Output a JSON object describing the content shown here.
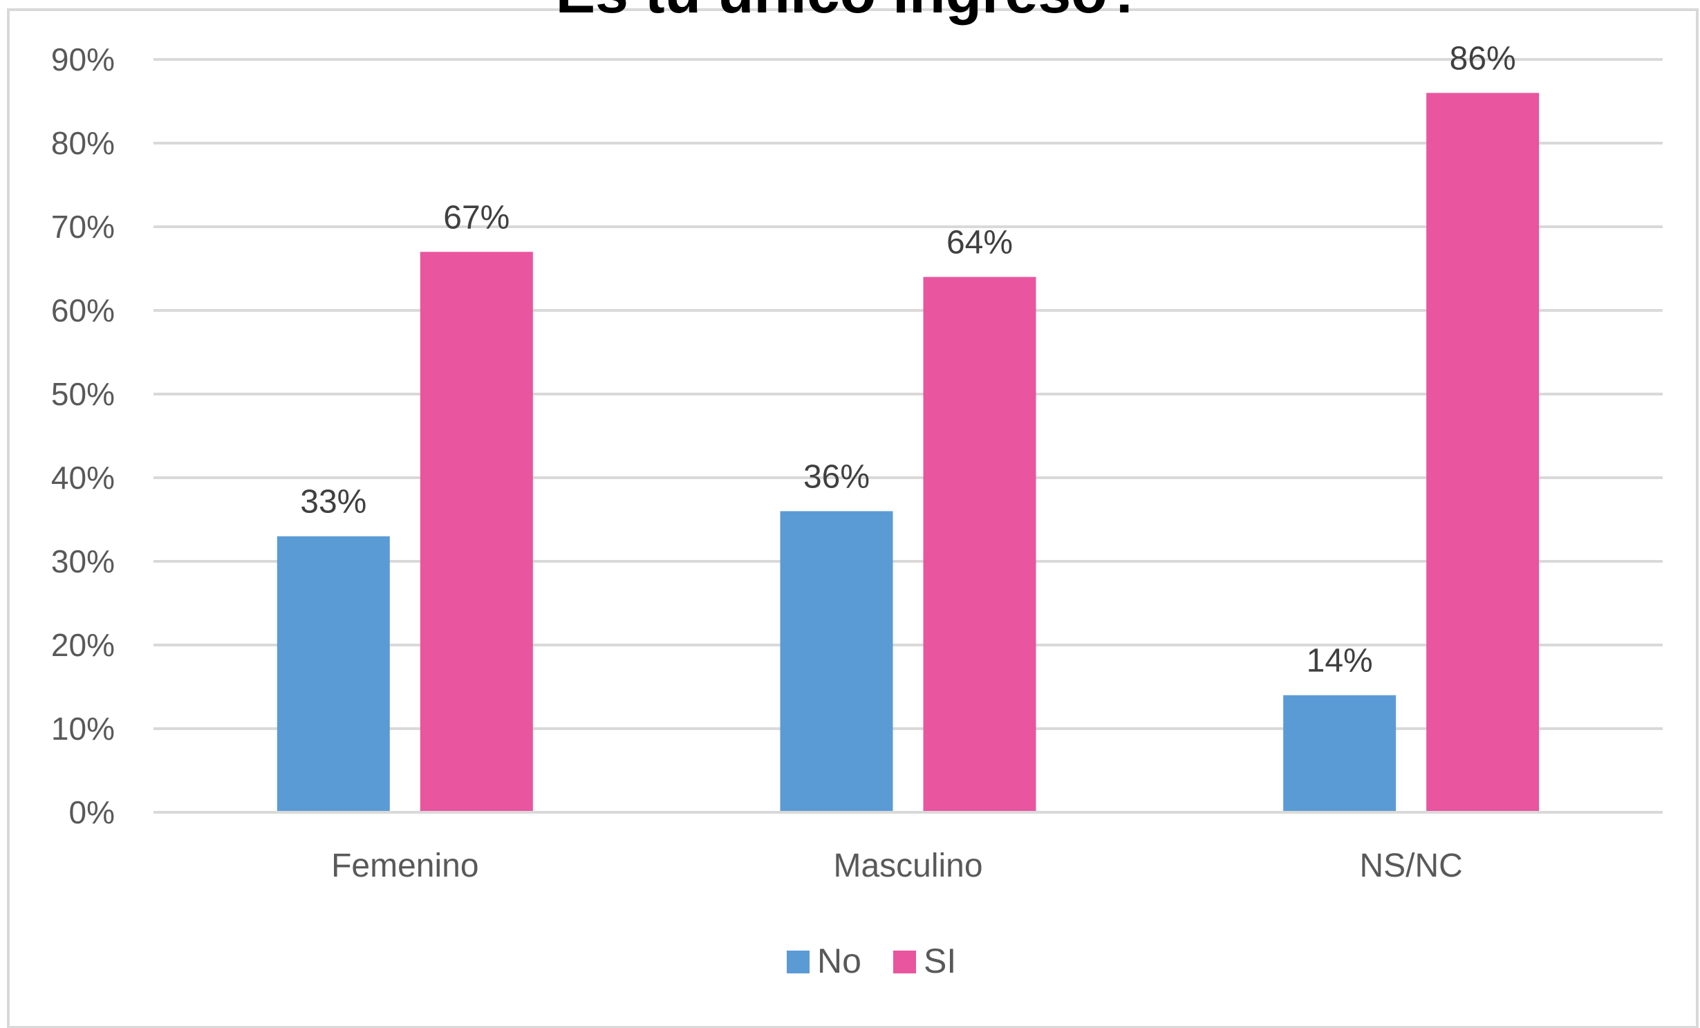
{
  "chart_data": {
    "type": "bar",
    "title": "Es tu único ingreso?",
    "categories": [
      "Femenino",
      "Masculino",
      "NS/NC"
    ],
    "series": [
      {
        "name": "No",
        "values": [
          33,
          36,
          14
        ],
        "labels": [
          "33%",
          "36%",
          "14%"
        ]
      },
      {
        "name": "SI",
        "values": [
          67,
          64,
          86
        ],
        "labels": [
          "67%",
          "64%",
          "86%"
        ]
      }
    ],
    "ylim": [
      0,
      90
    ],
    "yticks": [
      0,
      10,
      20,
      30,
      40,
      50,
      60,
      70,
      80,
      90
    ],
    "ytick_labels": [
      "0%",
      "10%",
      "20%",
      "30%",
      "40%",
      "50%",
      "60%",
      "70%",
      "80%",
      "90%"
    ],
    "xlabel": "",
    "ylabel": "",
    "grid": true,
    "legend": "bottom-center"
  },
  "colors": {
    "No": "#5b9bd5",
    "SI": "#e9559f",
    "grid": "#d9d9d9",
    "text": "#595959",
    "label": "#404040",
    "frame": "#d9d9d9"
  }
}
